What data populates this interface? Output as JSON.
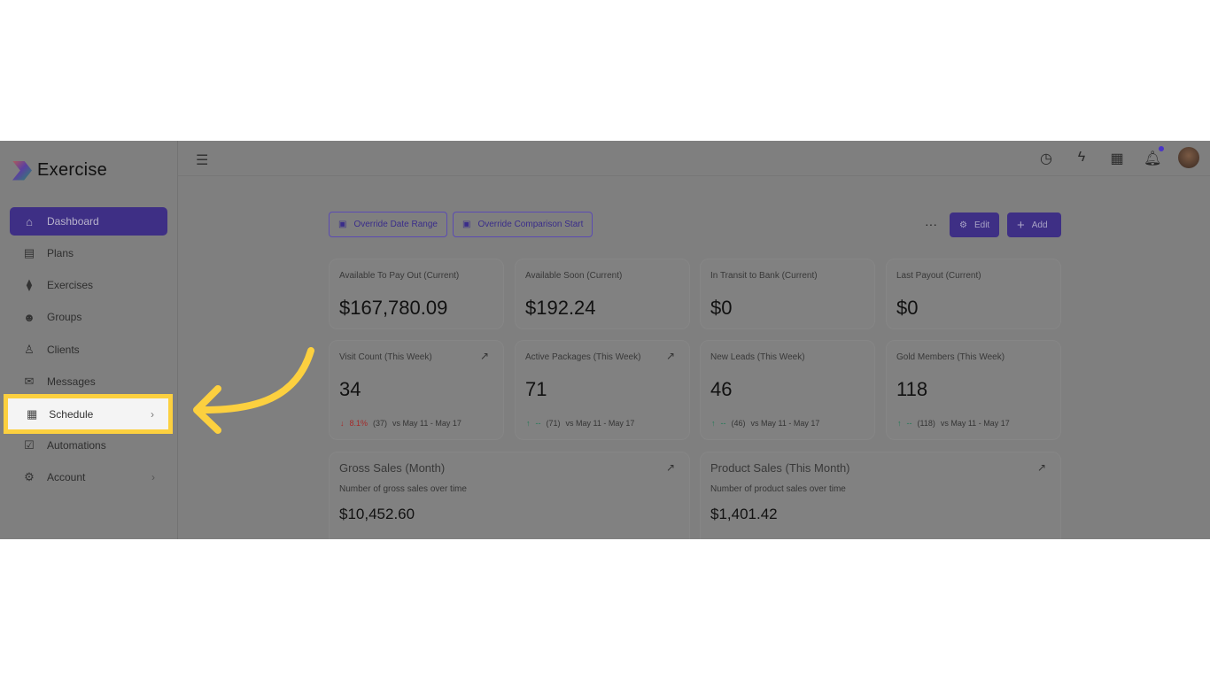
{
  "app": {
    "name": "Exercise"
  },
  "sidebar": {
    "items": [
      {
        "label": "Dashboard",
        "icon": "home-icon"
      },
      {
        "label": "Plans",
        "icon": "clipboard-icon"
      },
      {
        "label": "Exercises",
        "icon": "dumbbell-icon"
      },
      {
        "label": "Groups",
        "icon": "users-icon"
      },
      {
        "label": "Clients",
        "icon": "user-icon"
      },
      {
        "label": "Messages",
        "icon": "mail-icon"
      },
      {
        "label": "Schedule",
        "icon": "calendar-icon"
      },
      {
        "label": "Automations",
        "icon": "checkbox-icon"
      },
      {
        "label": "Account",
        "icon": "gear-icon"
      }
    ],
    "highlighted": "Schedule"
  },
  "toolbar": {
    "override_date_range": "Override Date Range",
    "override_comparison_start": "Override Comparison Start",
    "more": "···",
    "edit": "Edit",
    "add": "Add"
  },
  "stats": [
    {
      "label": "Available To Pay Out (Current)",
      "value": "$167,780.09"
    },
    {
      "label": "Available Soon (Current)",
      "value": "$192.24"
    },
    {
      "label": "In Transit to Bank (Current)",
      "value": "$0"
    },
    {
      "label": "Last Payout (Current)",
      "value": "$0"
    }
  ],
  "weekly": [
    {
      "label": "Visit Count (This Week)",
      "value": "34",
      "trend": "down",
      "change": "8.1%",
      "prev": "(37)",
      "range": "vs May 11 - May 17"
    },
    {
      "label": "Active Packages (This Week)",
      "value": "71",
      "trend": "up",
      "change": "--",
      "prev": "(71)",
      "range": "vs May 11 - May 17"
    },
    {
      "label": "New Leads (This Week)",
      "value": "46",
      "trend": "up",
      "change": "--",
      "prev": "(46)",
      "range": "vs May 11 - May 17"
    },
    {
      "label": "Gold Members (This Week)",
      "value": "118",
      "trend": "up",
      "change": "--",
      "prev": "(118)",
      "range": "vs May 11 - May 17"
    }
  ],
  "charts": [
    {
      "title": "Gross Sales (Month)",
      "subtitle": "Number of gross sales over time",
      "value": "$10,452.60"
    },
    {
      "title": "Product Sales (This Month)",
      "subtitle": "Number of product sales over time",
      "value": "$1,401.42"
    }
  ],
  "colors": {
    "accent": "#4a35c6",
    "highlight": "#fcd03f",
    "down": "#d63a3a",
    "up": "#2aa874"
  }
}
